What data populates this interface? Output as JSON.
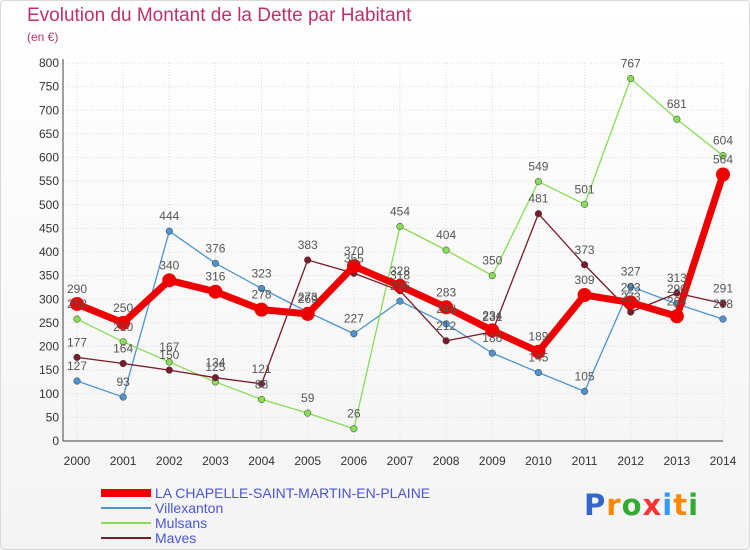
{
  "title": "Evolution du Montant de la Dette par Habitant",
  "subtitle": "(en €)",
  "logo": "Proxiti",
  "logo_colors": [
    "#3366cc",
    "#ff8800",
    "#33aa33",
    "#ff3333",
    "#3399ff",
    "#ff8800",
    "#33aa33"
  ],
  "chart_data": {
    "type": "line",
    "x": [
      "2000",
      "2001",
      "2002",
      "2003",
      "2004",
      "2005",
      "2006",
      "2007",
      "2008",
      "2009",
      "2010",
      "2011",
      "2012",
      "2013",
      "2014"
    ],
    "ylim": [
      0,
      800
    ],
    "yticks": [
      "0",
      "50",
      "100",
      "150",
      "200",
      "250",
      "300",
      "350",
      "400",
      "450",
      "500",
      "550",
      "600",
      "650",
      "700",
      "750",
      "800"
    ],
    "grid": true,
    "legend_position": "bottom-left",
    "series": [
      {
        "name": "LA CHAPELLE-SAINT-MARTIN-EN-PLAINE",
        "color": "#ee0000",
        "values": [
          290,
          250,
          340,
          316,
          278,
          269,
          370,
          328,
          283,
          234,
          189,
          309,
          293,
          264,
          564
        ]
      },
      {
        "name": "Villexanton",
        "color": "#4d94d0",
        "values": [
          127,
          93,
          444,
          376,
          323,
          273,
          227,
          296,
          248,
          186,
          145,
          105,
          327,
          290,
          258
        ]
      },
      {
        "name": "Mulsans",
        "color": "#88dd55",
        "values": [
          258,
          210,
          167,
          125,
          88,
          59,
          26,
          454,
          404,
          350,
          549,
          501,
          767,
          681,
          604
        ]
      },
      {
        "name": "Maves",
        "color": "#7a1a2a",
        "values": [
          177,
          164,
          150,
          134,
          121,
          383,
          355,
          318,
          212,
          231,
          481,
          373,
          273,
          313,
          291
        ]
      }
    ]
  }
}
